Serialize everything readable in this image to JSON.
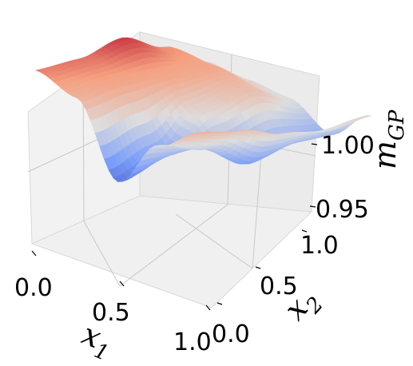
{
  "chart_data": {
    "type": "surface3d",
    "title": "",
    "colormap": "coolwarm",
    "x_axis": {
      "label_main": "x",
      "label_sub": "1",
      "ticks": [
        "0.0",
        "0.5",
        "1.0"
      ],
      "range": [
        0,
        1
      ]
    },
    "y_axis": {
      "label_main": "x",
      "label_sub": "2",
      "ticks": [
        "0.0",
        "0.5",
        "1.0"
      ],
      "range": [
        0,
        1
      ]
    },
    "z_axis": {
      "label_main": "m",
      "label_sub": "GP",
      "ticks": [
        "0.95",
        "1.00"
      ],
      "range": [
        0.93,
        1.04
      ]
    },
    "grid": true,
    "surface_grid": {
      "x": [
        0,
        0.25,
        0.5,
        0.75,
        1
      ],
      "y": [
        0,
        0.25,
        0.5,
        0.75,
        1
      ]
    },
    "surface_z": [
      [
        1.018,
        1.02,
        1.03,
        1.015,
        0.995
      ],
      [
        1.005,
        1.01,
        1.01,
        1.01,
        0.99
      ],
      [
        0.945,
        0.96,
        0.99,
        1.0,
        0.985
      ],
      [
        0.985,
        0.975,
        0.955,
        0.965,
        0.965
      ],
      [
        1.005,
        1.0,
        0.99,
        0.985,
        0.99
      ]
    ]
  }
}
